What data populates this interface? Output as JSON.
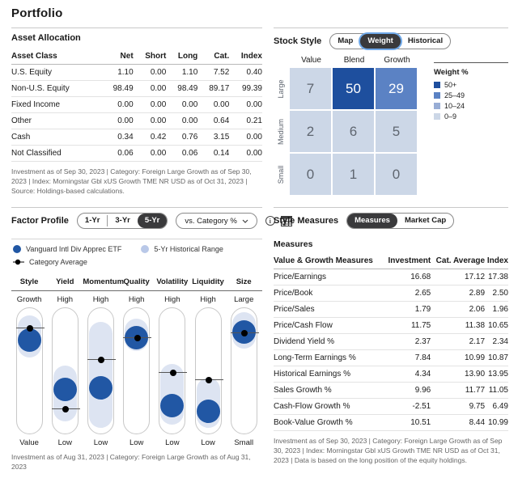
{
  "page": {
    "title": "Portfolio"
  },
  "colors": {
    "brand_blue": "#2157a4",
    "grid_dark": "#1e4f9e",
    "grid_mid": "#5b82c4",
    "grid_midlight": "#98add5",
    "grid_light": "#ccd7e7",
    "range_blue": "#dde4f2",
    "hist_dot": "#b9c8e8",
    "toggle_dark": "#3a3a3c",
    "focus_ring": "#6fa8e8"
  },
  "asset_allocation": {
    "title": "Asset Allocation",
    "columns": [
      "Asset Class",
      "Net",
      "Short",
      "Long",
      "Cat.",
      "Index"
    ],
    "rows": [
      {
        "label": "U.S. Equity",
        "values": [
          "1.10",
          "0.00",
          "1.10",
          "7.52",
          "0.40"
        ]
      },
      {
        "label": "Non-U.S. Equity",
        "values": [
          "98.49",
          "0.00",
          "98.49",
          "89.17",
          "99.39"
        ]
      },
      {
        "label": "Fixed Income",
        "values": [
          "0.00",
          "0.00",
          "0.00",
          "0.00",
          "0.00"
        ]
      },
      {
        "label": "Other",
        "values": [
          "0.00",
          "0.00",
          "0.00",
          "0.64",
          "0.21"
        ]
      },
      {
        "label": "Cash",
        "values": [
          "0.34",
          "0.42",
          "0.76",
          "3.15",
          "0.00"
        ]
      },
      {
        "label": "Not Classified",
        "values": [
          "0.06",
          "0.00",
          "0.06",
          "0.14",
          "0.00"
        ]
      }
    ],
    "footnote": "Investment as of Sep 30, 2023 | Category: Foreign Large Growth as of Sep 30, 2023 | Index: Morningstar Gbl xUS Growth TME NR USD as of Oct 31, 2023 | Source: Holdings-based calculations."
  },
  "stock_style": {
    "title": "Stock Style",
    "tabs": [
      {
        "label": "Map",
        "selected": false
      },
      {
        "label": "Weight",
        "selected": true
      },
      {
        "label": "Historical",
        "selected": false
      }
    ],
    "chart_data": {
      "type": "heatmap",
      "col_labels": [
        "Value",
        "Blend",
        "Growth"
      ],
      "row_labels": [
        "Large",
        "Medium",
        "Small"
      ],
      "values": [
        [
          7,
          50,
          29
        ],
        [
          2,
          6,
          5
        ],
        [
          0,
          1,
          0
        ]
      ],
      "legend_title": "Weight %",
      "legend": [
        {
          "label": "50+",
          "color": "#1e4f9e"
        },
        {
          "label": "25–49",
          "color": "#5b82c4"
        },
        {
          "label": "10–24",
          "color": "#98add5"
        },
        {
          "label": "0–9",
          "color": "#ccd7e7"
        }
      ]
    }
  },
  "factor_profile": {
    "title": "Factor Profile",
    "tabs": [
      {
        "label": "1-Yr",
        "selected": false
      },
      {
        "label": "3-Yr",
        "selected": false
      },
      {
        "label": "5-Yr",
        "selected": true
      }
    ],
    "dropdown": {
      "label": "vs. Category %"
    },
    "legend": [
      {
        "label": "Vanguard Intl Div Apprec ETF",
        "marker": "etf-dot"
      },
      {
        "label": "5-Yr Historical Range",
        "marker": "range-dot"
      },
      {
        "label": "Category Average",
        "marker": "cat-arrow"
      }
    ],
    "chart_data": {
      "type": "factor-profile",
      "factors": [
        {
          "name": "Style",
          "top": "Growth",
          "bottom": "Value",
          "range_pct": [
            6,
            39
          ],
          "etf_pct": 25,
          "cat_pct": 15
        },
        {
          "name": "Yield",
          "top": "High",
          "bottom": "Low",
          "range_pct": [
            45,
            89
          ],
          "etf_pct": 64,
          "cat_pct": 79
        },
        {
          "name": "Momentum",
          "top": "High",
          "bottom": "Low",
          "range_pct": [
            11,
            94
          ],
          "etf_pct": 63,
          "cat_pct": 40
        },
        {
          "name": "Quality",
          "top": "High",
          "bottom": "Low",
          "range_pct": [
            8,
            34
          ],
          "etf_pct": 23,
          "cat_pct": 23
        },
        {
          "name": "Volatility",
          "top": "High",
          "bottom": "Low",
          "range_pct": [
            44,
            92
          ],
          "etf_pct": 77,
          "cat_pct": 50
        },
        {
          "name": "Liquidity",
          "top": "High",
          "bottom": "Low",
          "range_pct": [
            55,
            94
          ],
          "etf_pct": 81,
          "cat_pct": 56
        },
        {
          "name": "Size",
          "top": "Large",
          "bottom": "Small",
          "range_pct": [
            3,
            32
          ],
          "etf_pct": 19,
          "cat_pct": 19
        }
      ]
    },
    "footnote": "Investment as of Aug 31, 2023 | Category: Foreign Large Growth as of Aug 31, 2023"
  },
  "style_measures": {
    "title": "Style Measures",
    "tabs": [
      {
        "label": "Measures",
        "selected": true
      },
      {
        "label": "Market Cap",
        "selected": false
      }
    ],
    "subtitle": "Measures",
    "columns": [
      "Value & Growth Measures",
      "Investment",
      "Cat. Average",
      "Index"
    ],
    "rows": [
      {
        "label": "Price/Earnings",
        "values": [
          "16.68",
          "17.12",
          "17.38"
        ]
      },
      {
        "label": "Price/Book",
        "values": [
          "2.65",
          "2.89",
          "2.50"
        ]
      },
      {
        "label": "Price/Sales",
        "values": [
          "1.79",
          "2.06",
          "1.96"
        ]
      },
      {
        "label": "Price/Cash Flow",
        "values": [
          "11.75",
          "11.38",
          "10.65"
        ]
      },
      {
        "label": "Dividend Yield %",
        "values": [
          "2.37",
          "2.17",
          "2.34"
        ]
      },
      {
        "label": "Long-Term Earnings %",
        "values": [
          "7.84",
          "10.99",
          "10.87"
        ]
      },
      {
        "label": "Historical Earnings %",
        "values": [
          "4.34",
          "13.90",
          "13.95"
        ]
      },
      {
        "label": "Sales Growth %",
        "values": [
          "9.96",
          "11.77",
          "11.05"
        ]
      },
      {
        "label": "Cash-Flow Growth %",
        "values": [
          "-2.51",
          "9.75",
          "6.49"
        ]
      },
      {
        "label": "Book-Value Growth %",
        "values": [
          "10.51",
          "8.44",
          "10.99"
        ]
      }
    ],
    "footnote": "Investment as of Sep 30, 2023 | Category: Foreign Large Growth as of Sep 30, 2023 | Index: Morningstar Gbl xUS Growth TME NR USD as of Oct 31, 2023 | Data is based on the long position of the equity holdings."
  }
}
